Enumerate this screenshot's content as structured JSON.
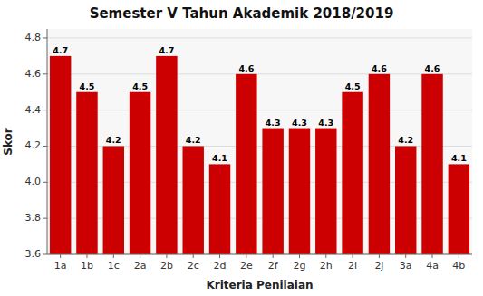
{
  "chart_data": {
    "type": "bar",
    "title": "Semester V Tahun Akademik 2018/2019",
    "xlabel": "Kriteria Penilaian",
    "ylabel": "Skor",
    "categories": [
      "1a",
      "1b",
      "1c",
      "2a",
      "2b",
      "2c",
      "2d",
      "2e",
      "2f",
      "2g",
      "2h",
      "2i",
      "2j",
      "3a",
      "4a",
      "4b"
    ],
    "values": [
      4.7,
      4.5,
      4.2,
      4.5,
      4.7,
      4.2,
      4.1,
      4.6,
      4.3,
      4.3,
      4.3,
      4.5,
      4.6,
      4.2,
      4.6,
      4.1
    ],
    "color": "#cc0000",
    "ylim": [
      3.6,
      4.85
    ],
    "yticks": [
      3.6,
      3.8,
      {
        "value": 4.0,
        "label": "4.0"
      },
      4.2,
      4.4,
      4.6,
      4.8
    ],
    "grid": true,
    "data_labels": true
  }
}
